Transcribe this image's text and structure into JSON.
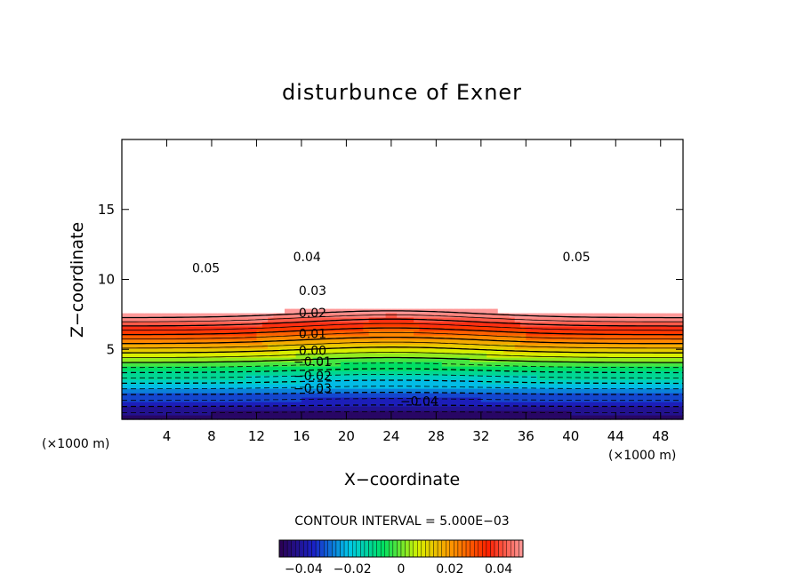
{
  "chart_data": {
    "type": "contour",
    "title": "disturbunce of Exner",
    "xlabel": "X−coordinate",
    "ylabel": "Z−coordinate",
    "x_unit": "(×1000 m)",
    "x_unit_right": "(×1000 m)",
    "x_ticks": [
      "4",
      "8",
      "12",
      "16",
      "20",
      "24",
      "28",
      "32",
      "36",
      "40",
      "44",
      "48"
    ],
    "y_ticks": [
      "5",
      "10",
      "15"
    ],
    "xlim": [
      0,
      50
    ],
    "ylim": [
      0,
      20
    ],
    "contour_interval_text": "CONTOUR INTERVAL = 5.000E−03",
    "contour_interval": 0.005,
    "contour_labels": [
      {
        "text": "0.05",
        "x": 7.5,
        "z": 10.5
      },
      {
        "text": "0.04",
        "x": 16.5,
        "z": 11.3
      },
      {
        "text": "0.03",
        "x": 17.0,
        "z": 8.9
      },
      {
        "text": "0.02",
        "x": 17.0,
        "z": 7.3
      },
      {
        "text": "0.01",
        "x": 17.0,
        "z": 5.8
      },
      {
        "text": "0.00",
        "x": 17.0,
        "z": 4.6
      },
      {
        "text": "−0.01",
        "x": 17.0,
        "z": 3.8
      },
      {
        "text": "−0.02",
        "x": 17.0,
        "z": 2.8
      },
      {
        "text": "−0.03",
        "x": 17.0,
        "z": 1.9
      },
      {
        "text": "−0.04",
        "x": 26.5,
        "z": 1.0
      },
      {
        "text": "0.05",
        "x": 40.5,
        "z": 11.3
      }
    ],
    "color_range": [
      -0.05,
      0.05
    ],
    "colorbar_ticks": [
      "−0.04",
      "−0.02",
      "0",
      "0.02",
      "0.04"
    ],
    "colorbar_values": [
      -0.04,
      -0.02,
      0,
      0.02,
      0.04
    ],
    "colormap": [
      "#2b0050",
      "#1a22c8",
      "#00c8e8",
      "#00e060",
      "#d8f000",
      "#ff9000",
      "#ff2000",
      "#ff9a9a"
    ]
  }
}
